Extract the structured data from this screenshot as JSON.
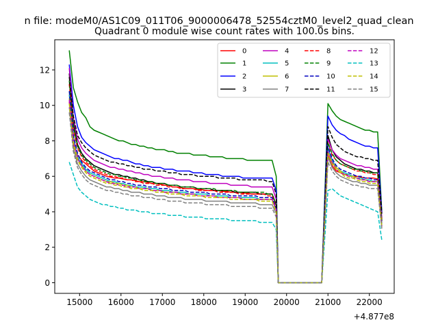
{
  "figure": {
    "suptitle": "n file: modeM0/AS1C09_011T06_9000006478_52554cztM0_level2_quad_clean",
    "title": "Quadrant 0 module wise count rates with 100.0s bins.",
    "offset_text": "+4.877e8"
  },
  "chart_data": {
    "type": "line",
    "title": "Quadrant 0 module wise count rates with 100.0s bins.",
    "xlabel": "",
    "ylabel": "",
    "xlim": [
      14400,
      22600
    ],
    "ylim": [
      -0.6,
      13.7
    ],
    "x_offset": 487700000,
    "x_ticks": [
      15000,
      16000,
      17000,
      18000,
      19000,
      20000,
      21000,
      22000
    ],
    "y_ticks": [
      0,
      2,
      4,
      6,
      8,
      10,
      12
    ],
    "grid": false,
    "legend_position": "top-right",
    "legend_columns": 4,
    "segments": [
      {
        "x_start": 14750,
        "x_end": 19750,
        "step": 100
      },
      {
        "x_start": 19800,
        "x_end": 20850,
        "zero": true
      },
      {
        "x_start": 21000,
        "x_end": 22250,
        "step": 100
      }
    ],
    "series": [
      {
        "name": "0",
        "color": "#ff0000",
        "dash": "solid",
        "seg1": [
          10.2,
          7.8,
          7.2,
          6.9,
          6.7,
          6.5,
          6.3,
          6.2,
          6.1,
          6.0,
          5.95,
          5.9,
          5.9,
          5.85,
          5.8,
          5.8,
          5.75,
          5.7,
          5.7,
          5.65,
          5.6,
          5.6,
          5.55,
          5.5,
          5.5,
          5.4,
          5.4,
          5.35,
          5.3,
          5.3,
          5.3,
          5.25,
          5.25,
          5.2,
          5.2,
          5.2,
          5.2,
          5.15,
          5.15,
          5.1,
          5.1,
          5.1,
          5.05,
          5.05,
          5.0,
          5.0,
          5.0,
          5.0,
          5.0,
          5.0,
          4.4
        ],
        "seg2": [
          7.2,
          6.6,
          6.3,
          6.2,
          6.1,
          6.1,
          6.0,
          6.0,
          5.95,
          5.9,
          5.9,
          5.9,
          5.85,
          3.6
        ]
      },
      {
        "name": "1",
        "color": "#008000",
        "dash": "solid",
        "seg1": [
          13.1,
          11.0,
          10.2,
          9.6,
          9.3,
          8.8,
          8.6,
          8.5,
          8.4,
          8.3,
          8.2,
          8.1,
          8.0,
          8.0,
          7.9,
          7.8,
          7.8,
          7.7,
          7.7,
          7.6,
          7.6,
          7.5,
          7.5,
          7.5,
          7.4,
          7.4,
          7.3,
          7.3,
          7.3,
          7.3,
          7.2,
          7.2,
          7.2,
          7.2,
          7.1,
          7.1,
          7.1,
          7.1,
          7.0,
          7.0,
          7.0,
          7.0,
          7.0,
          6.9,
          6.9,
          6.9,
          6.9,
          6.9,
          6.9,
          6.9,
          6.0
        ],
        "seg2": [
          10.1,
          9.7,
          9.4,
          9.2,
          9.1,
          9.0,
          8.9,
          8.8,
          8.7,
          8.6,
          8.6,
          8.5,
          8.5,
          4.0
        ]
      },
      {
        "name": "2",
        "color": "#0000ff",
        "dash": "solid",
        "seg1": [
          12.3,
          10.0,
          8.8,
          8.2,
          7.9,
          7.7,
          7.5,
          7.4,
          7.3,
          7.2,
          7.1,
          7.0,
          7.0,
          6.9,
          6.9,
          6.8,
          6.7,
          6.7,
          6.6,
          6.6,
          6.5,
          6.5,
          6.5,
          6.4,
          6.4,
          6.4,
          6.3,
          6.3,
          6.3,
          6.3,
          6.2,
          6.2,
          6.2,
          6.1,
          6.1,
          6.1,
          6.1,
          6.0,
          6.0,
          6.0,
          6.0,
          6.0,
          5.9,
          5.9,
          5.9,
          5.9,
          5.9,
          5.9,
          5.9,
          5.9,
          5.2
        ],
        "seg2": [
          9.4,
          8.9,
          8.6,
          8.4,
          8.3,
          8.1,
          8.0,
          7.9,
          7.8,
          7.7,
          7.7,
          7.6,
          7.6,
          3.9
        ]
      },
      {
        "name": "3",
        "color": "#000000",
        "dash": "solid",
        "seg1": [
          11.8,
          9.0,
          7.8,
          7.3,
          7.0,
          6.8,
          6.6,
          6.5,
          6.4,
          6.3,
          6.2,
          6.1,
          6.1,
          6.0,
          6.0,
          5.9,
          5.9,
          5.8,
          5.8,
          5.7,
          5.7,
          5.6,
          5.6,
          5.6,
          5.5,
          5.5,
          5.5,
          5.4,
          5.4,
          5.4,
          5.4,
          5.3,
          5.3,
          5.3,
          5.3,
          5.2,
          5.2,
          5.2,
          5.2,
          5.2,
          5.1,
          5.1,
          5.1,
          5.1,
          5.1,
          5.1,
          5.0,
          5.0,
          5.0,
          5.0,
          4.4
        ],
        "seg2": [
          8.3,
          7.5,
          7.1,
          6.9,
          6.7,
          6.6,
          6.5,
          6.4,
          6.4,
          6.3,
          6.3,
          6.2,
          6.2,
          3.5
        ]
      },
      {
        "name": "4",
        "color": "#bf00bf",
        "dash": "solid",
        "seg1": [
          12.1,
          9.3,
          8.1,
          7.6,
          7.3,
          7.1,
          6.9,
          6.8,
          6.7,
          6.6,
          6.5,
          6.5,
          6.4,
          6.4,
          6.3,
          6.3,
          6.2,
          6.2,
          6.1,
          6.1,
          6.0,
          6.0,
          6.0,
          5.9,
          5.9,
          5.9,
          5.8,
          5.8,
          5.8,
          5.8,
          5.7,
          5.7,
          5.7,
          5.7,
          5.6,
          5.6,
          5.6,
          5.6,
          5.6,
          5.5,
          5.5,
          5.5,
          5.5,
          5.5,
          5.4,
          5.4,
          5.4,
          5.4,
          5.4,
          5.4,
          4.7
        ],
        "seg2": [
          8.1,
          7.5,
          7.2,
          7.0,
          6.9,
          6.8,
          6.7,
          6.6,
          6.6,
          6.5,
          6.5,
          6.4,
          6.4,
          3.7
        ]
      },
      {
        "name": "5",
        "color": "#00bfbf",
        "dash": "solid",
        "seg1": [
          10.6,
          8.2,
          7.1,
          6.7,
          6.4,
          6.2,
          6.1,
          6.0,
          5.9,
          5.8,
          5.7,
          5.7,
          5.6,
          5.6,
          5.5,
          5.5,
          5.4,
          5.4,
          5.4,
          5.3,
          5.3,
          5.3,
          5.2,
          5.2,
          5.2,
          5.1,
          5.1,
          5.1,
          5.1,
          5.0,
          5.0,
          5.0,
          5.0,
          5.0,
          4.9,
          4.9,
          4.9,
          4.9,
          4.9,
          4.8,
          4.8,
          4.8,
          4.8,
          4.8,
          4.8,
          4.8,
          4.7,
          4.7,
          4.7,
          4.7,
          4.1
        ],
        "seg2": [
          7.6,
          6.9,
          6.5,
          6.3,
          6.2,
          6.1,
          6.0,
          5.9,
          5.9,
          5.8,
          5.8,
          5.7,
          5.7,
          3.3
        ]
      },
      {
        "name": "6",
        "color": "#bfbf00",
        "dash": "solid",
        "seg1": [
          10.4,
          8.0,
          7.0,
          6.6,
          6.3,
          6.1,
          6.0,
          5.9,
          5.8,
          5.7,
          5.7,
          5.6,
          5.6,
          5.5,
          5.5,
          5.4,
          5.4,
          5.3,
          5.3,
          5.3,
          5.2,
          5.2,
          5.2,
          5.1,
          5.1,
          5.1,
          5.1,
          5.0,
          5.0,
          5.0,
          5.0,
          4.9,
          4.9,
          4.9,
          4.9,
          4.9,
          4.8,
          4.8,
          4.8,
          4.8,
          4.8,
          4.8,
          4.7,
          4.7,
          4.7,
          4.7,
          4.7,
          4.7,
          4.7,
          4.7,
          4.1
        ],
        "seg2": [
          7.4,
          6.8,
          6.5,
          6.3,
          6.1,
          6.0,
          6.0,
          5.9,
          5.8,
          5.8,
          5.7,
          5.7,
          5.7,
          3.2
        ]
      },
      {
        "name": "7",
        "color": "#808080",
        "dash": "solid",
        "seg1": [
          9.9,
          7.6,
          6.7,
          6.3,
          6.0,
          5.8,
          5.7,
          5.6,
          5.5,
          5.4,
          5.4,
          5.3,
          5.3,
          5.2,
          5.2,
          5.1,
          5.1,
          5.1,
          5.0,
          5.0,
          5.0,
          4.9,
          4.9,
          4.9,
          4.8,
          4.8,
          4.8,
          4.8,
          4.7,
          4.7,
          4.7,
          4.7,
          4.7,
          4.6,
          4.6,
          4.6,
          4.6,
          4.6,
          4.6,
          4.5,
          4.5,
          4.5,
          4.5,
          4.5,
          4.5,
          4.5,
          4.4,
          4.4,
          4.4,
          4.4,
          3.9
        ],
        "seg2": [
          7.1,
          6.5,
          6.2,
          6.0,
          5.9,
          5.8,
          5.7,
          5.7,
          5.6,
          5.6,
          5.5,
          5.5,
          5.5,
          3.1
        ]
      },
      {
        "name": "8",
        "color": "#ff0000",
        "dash": "dashed",
        "seg1": [
          11.2,
          8.6,
          7.6,
          7.1,
          6.8,
          6.6,
          6.4,
          6.3,
          6.2,
          6.1,
          6.0,
          6.0,
          5.9,
          5.9,
          5.8,
          5.8,
          5.7,
          5.7,
          5.6,
          5.6,
          5.6,
          5.5,
          5.5,
          5.5,
          5.4,
          5.4,
          5.4,
          5.3,
          5.3,
          5.3,
          5.3,
          5.2,
          5.2,
          5.2,
          5.2,
          5.2,
          5.1,
          5.1,
          5.1,
          5.1,
          5.1,
          5.0,
          5.0,
          5.0,
          5.0,
          5.0,
          5.0,
          5.0,
          4.9,
          4.9,
          4.3
        ],
        "seg2": [
          7.9,
          7.2,
          6.9,
          6.7,
          6.6,
          6.5,
          6.4,
          6.3,
          6.3,
          6.2,
          6.2,
          6.1,
          6.1,
          3.5
        ]
      },
      {
        "name": "9",
        "color": "#008000",
        "dash": "dashed",
        "seg1": [
          11.4,
          8.8,
          7.7,
          7.2,
          6.9,
          6.7,
          6.5,
          6.4,
          6.3,
          6.2,
          6.1,
          6.1,
          6.0,
          6.0,
          5.9,
          5.9,
          5.8,
          5.8,
          5.7,
          5.7,
          5.7,
          5.6,
          5.6,
          5.6,
          5.5,
          5.5,
          5.5,
          5.4,
          5.4,
          5.4,
          5.4,
          5.3,
          5.3,
          5.3,
          5.3,
          5.3,
          5.2,
          5.2,
          5.2,
          5.2,
          5.2,
          5.1,
          5.1,
          5.1,
          5.1,
          5.1,
          5.1,
          5.1,
          5.0,
          5.0,
          4.4
        ],
        "seg2": [
          7.9,
          7.3,
          6.9,
          6.7,
          6.6,
          6.5,
          6.4,
          6.4,
          6.3,
          6.3,
          6.2,
          6.2,
          6.2,
          3.5
        ]
      },
      {
        "name": "10",
        "color": "#0000bf",
        "dash": "dashed",
        "seg1": [
          10.8,
          8.3,
          7.3,
          6.8,
          6.5,
          6.3,
          6.2,
          6.1,
          6.0,
          5.9,
          5.8,
          5.8,
          5.7,
          5.7,
          5.6,
          5.6,
          5.5,
          5.5,
          5.5,
          5.4,
          5.4,
          5.4,
          5.3,
          5.3,
          5.3,
          5.2,
          5.2,
          5.2,
          5.2,
          5.1,
          5.1,
          5.1,
          5.1,
          5.1,
          5.0,
          5.0,
          5.0,
          5.0,
          5.0,
          4.9,
          4.9,
          4.9,
          4.9,
          4.9,
          4.9,
          4.9,
          4.8,
          4.8,
          4.8,
          4.8,
          4.2
        ],
        "seg2": [
          7.7,
          7.0,
          6.6,
          6.4,
          6.3,
          6.2,
          6.1,
          6.0,
          6.0,
          5.9,
          5.9,
          5.8,
          5.8,
          3.3
        ]
      },
      {
        "name": "11",
        "color": "#000000",
        "dash": "dashed",
        "seg1": [
          11.6,
          9.4,
          8.3,
          7.9,
          7.6,
          7.4,
          7.2,
          7.1,
          7.0,
          6.9,
          6.8,
          6.8,
          6.7,
          6.7,
          6.6,
          6.6,
          6.5,
          6.5,
          6.4,
          6.4,
          6.4,
          6.3,
          6.3,
          6.3,
          6.2,
          6.2,
          6.2,
          6.1,
          6.1,
          6.1,
          6.1,
          6.0,
          6.0,
          6.0,
          6.0,
          6.0,
          5.9,
          5.9,
          5.9,
          5.9,
          5.9,
          5.8,
          5.8,
          5.8,
          5.8,
          5.8,
          5.8,
          5.8,
          5.7,
          5.7,
          5.0
        ],
        "seg2": [
          8.8,
          8.2,
          7.8,
          7.6,
          7.4,
          7.3,
          7.2,
          7.1,
          7.1,
          7.0,
          7.0,
          6.9,
          6.9,
          3.9
        ]
      },
      {
        "name": "12",
        "color": "#bf00bf",
        "dash": "dashed",
        "seg1": [
          10.3,
          8.0,
          7.0,
          6.6,
          6.3,
          6.1,
          6.0,
          5.9,
          5.8,
          5.7,
          5.6,
          5.6,
          5.5,
          5.5,
          5.4,
          5.4,
          5.4,
          5.3,
          5.3,
          5.3,
          5.2,
          5.2,
          5.2,
          5.1,
          5.1,
          5.1,
          5.1,
          5.0,
          5.0,
          5.0,
          5.0,
          4.9,
          4.9,
          4.9,
          4.9,
          4.9,
          4.8,
          4.8,
          4.8,
          4.8,
          4.8,
          4.8,
          4.7,
          4.7,
          4.7,
          4.7,
          4.7,
          4.7,
          4.7,
          4.7,
          4.1
        ],
        "seg2": [
          7.4,
          6.8,
          6.4,
          6.2,
          6.1,
          6.0,
          5.9,
          5.9,
          5.8,
          5.8,
          5.7,
          5.7,
          5.7,
          3.2
        ]
      },
      {
        "name": "13",
        "color": "#00bfbf",
        "dash": "dashed",
        "seg1": [
          6.8,
          6.1,
          5.4,
          5.1,
          4.9,
          4.7,
          4.6,
          4.5,
          4.4,
          4.4,
          4.3,
          4.3,
          4.2,
          4.2,
          4.1,
          4.1,
          4.1,
          4.0,
          4.0,
          4.0,
          3.9,
          3.9,
          3.9,
          3.9,
          3.8,
          3.8,
          3.8,
          3.8,
          3.7,
          3.7,
          3.7,
          3.7,
          3.7,
          3.6,
          3.6,
          3.6,
          3.6,
          3.6,
          3.6,
          3.5,
          3.5,
          3.5,
          3.5,
          3.5,
          3.5,
          3.5,
          3.4,
          3.4,
          3.4,
          3.4,
          3.0
        ],
        "seg2": [
          5.2,
          5.3,
          5.1,
          4.9,
          4.8,
          4.7,
          4.6,
          4.5,
          4.4,
          4.3,
          4.2,
          4.1,
          4.0,
          2.4
        ]
      },
      {
        "name": "14",
        "color": "#bfbf00",
        "dash": "dashed",
        "seg1": [
          10.1,
          7.8,
          6.9,
          6.5,
          6.2,
          6.0,
          5.9,
          5.8,
          5.7,
          5.6,
          5.6,
          5.5,
          5.5,
          5.4,
          5.4,
          5.3,
          5.3,
          5.3,
          5.2,
          5.2,
          5.2,
          5.1,
          5.1,
          5.1,
          5.0,
          5.0,
          5.0,
          5.0,
          4.9,
          4.9,
          4.9,
          4.9,
          4.9,
          4.8,
          4.8,
          4.8,
          4.8,
          4.8,
          4.8,
          4.7,
          4.7,
          4.7,
          4.7,
          4.7,
          4.7,
          4.7,
          4.6,
          4.6,
          4.6,
          4.6,
          4.0
        ],
        "seg2": [
          7.3,
          6.7,
          6.4,
          6.2,
          6.0,
          5.9,
          5.9,
          5.8,
          5.7,
          5.7,
          5.6,
          5.6,
          5.6,
          3.2
        ]
      },
      {
        "name": "15",
        "color": "#808080",
        "dash": "dashed",
        "seg1": [
          9.6,
          7.4,
          6.5,
          6.1,
          5.8,
          5.6,
          5.5,
          5.4,
          5.3,
          5.2,
          5.2,
          5.1,
          5.1,
          5.0,
          5.0,
          4.9,
          4.9,
          4.9,
          4.8,
          4.8,
          4.8,
          4.7,
          4.7,
          4.7,
          4.6,
          4.6,
          4.6,
          4.6,
          4.5,
          4.5,
          4.5,
          4.5,
          4.5,
          4.4,
          4.4,
          4.4,
          4.4,
          4.4,
          4.4,
          4.3,
          4.3,
          4.3,
          4.3,
          4.3,
          4.3,
          4.3,
          4.2,
          4.2,
          4.2,
          4.2,
          3.7
        ],
        "seg2": [
          6.8,
          6.3,
          6.0,
          5.8,
          5.7,
          5.6,
          5.5,
          5.5,
          5.4,
          5.4,
          5.3,
          5.3,
          5.3,
          3.0
        ]
      }
    ]
  }
}
